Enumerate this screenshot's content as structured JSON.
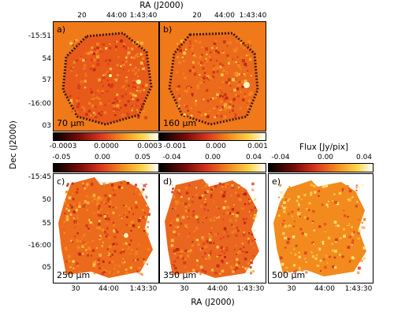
{
  "top_axis": {
    "title": "RA (J2000)",
    "ticks_a": [
      "20",
      "44:00",
      "1:43:40"
    ],
    "ticks_b": [
      "20",
      "44:00",
      "1:43:40"
    ]
  },
  "dec_axis": {
    "title": "Dec (J2000)",
    "ticks_top": [
      "-15:51",
      "54",
      "57",
      "-16:00",
      "03"
    ],
    "ticks_bottom": [
      "-15:45",
      "50",
      "55",
      "-16:00",
      "05"
    ]
  },
  "bottom_axis": {
    "title": "RA (J2000)",
    "ticks_c": [
      "30",
      "44:00",
      "1:43:30"
    ],
    "ticks_d": [
      "30",
      "44:00",
      "1:43:30"
    ],
    "ticks_e": [
      "30",
      "44:00",
      "1:43:30"
    ]
  },
  "flux_label": "Flux [Jy/pix]",
  "panels": [
    {
      "id": "a",
      "label": "a)",
      "wavelength": "70 μm"
    },
    {
      "id": "b",
      "label": "b)",
      "wavelength": "160 μm"
    },
    {
      "id": "c",
      "label": "c)",
      "wavelength": "250 μm"
    },
    {
      "id": "d",
      "label": "d)",
      "wavelength": "350 μm"
    },
    {
      "id": "e",
      "label": "e)",
      "wavelength": "500 μm"
    }
  ],
  "colorbars": {
    "a": [
      "-0.0003",
      "0.0000",
      "0.0003"
    ],
    "b": [
      "-0.001",
      "0.000",
      "0.001"
    ],
    "c": [
      "-0.05",
      "0.00",
      "0.05"
    ],
    "d": [
      "-0.04",
      "0.00",
      "0.04"
    ],
    "e": [
      "-0.04",
      "0.00",
      "0.04"
    ]
  },
  "colors": {
    "background_orange": "#f07a1a",
    "map_red": "#d9361f",
    "map_orange": "#f28a1e",
    "map_yellow": "#ffd54a"
  }
}
